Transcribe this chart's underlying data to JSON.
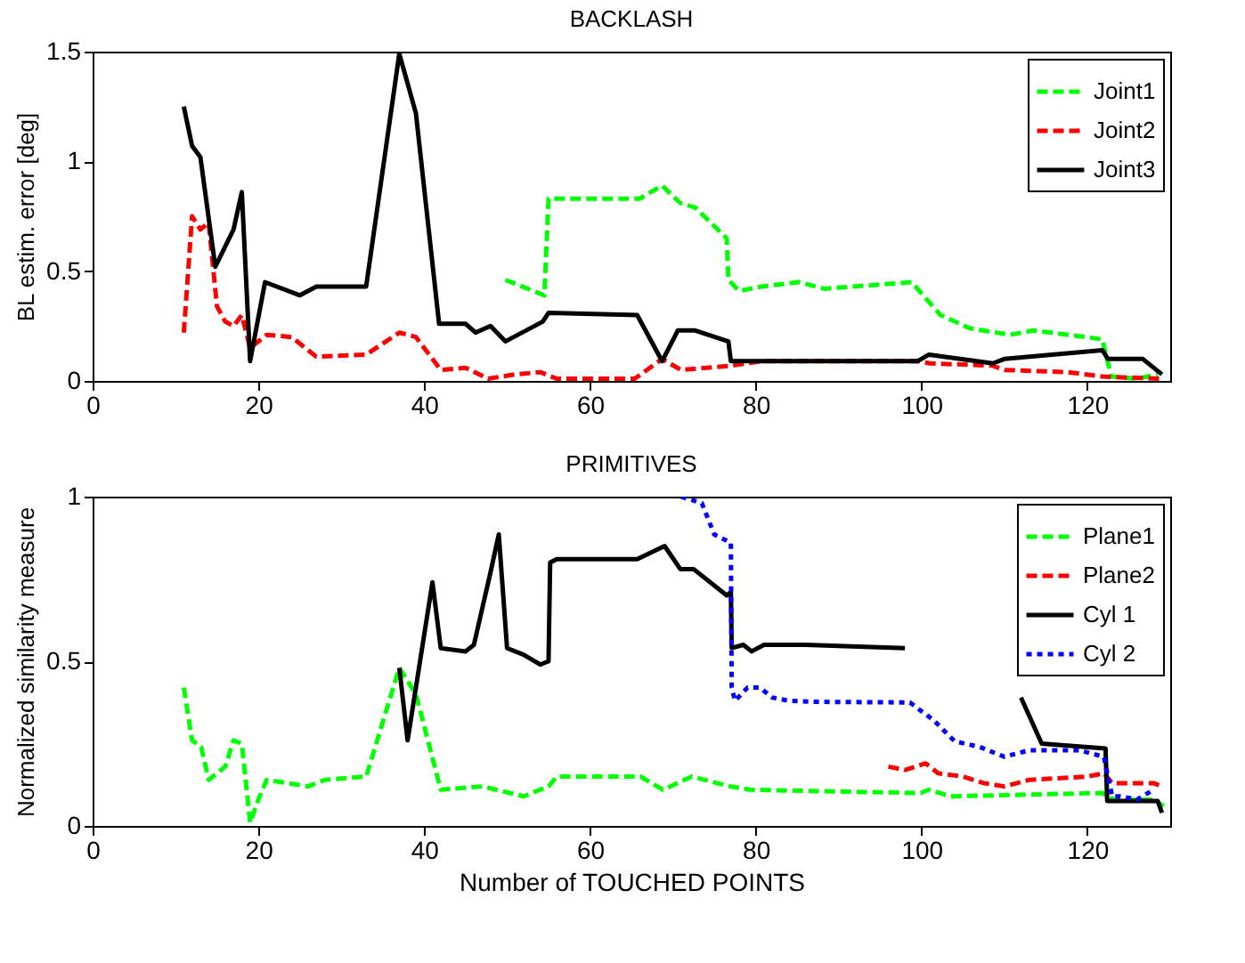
{
  "chart_data": [
    {
      "type": "line",
      "title": "BACKLASH",
      "ylabel": "BL estim. error [deg]",
      "xlim": [
        0,
        130
      ],
      "xticks": [
        0,
        20,
        40,
        60,
        80,
        100,
        120
      ],
      "ylim": [
        0,
        1.5
      ],
      "yticks": [
        0,
        0.5,
        1,
        1.5
      ],
      "grid": false,
      "legend": "top right",
      "series": [
        {
          "name": "Joint1",
          "color": "#00ff00",
          "line_style": "dashed",
          "x": [
            49.8,
            54.5,
            55,
            66,
            68.7,
            70.9,
            72.7,
            76.5,
            76.7,
            78,
            80.7,
            85.2,
            88.3,
            98.8,
            102.3,
            105.8,
            110.7,
            113.5,
            121.8,
            122.9,
            126,
            128.5
          ],
          "values": [
            0.46,
            0.39,
            0.83,
            0.83,
            0.89,
            0.81,
            0.79,
            0.65,
            0.46,
            0.41,
            0.43,
            0.45,
            0.42,
            0.45,
            0.3,
            0.24,
            0.21,
            0.23,
            0.19,
            0.02,
            0.01,
            0.03
          ]
        },
        {
          "name": "Joint2",
          "color": "#ff0000",
          "line_style": "dashed",
          "x": [
            11,
            12,
            13,
            14,
            15,
            16,
            17,
            18,
            19,
            21,
            24,
            27,
            33,
            37,
            39,
            42,
            45,
            47.7,
            51,
            54,
            56,
            65.4,
            68.7,
            71,
            77.2,
            80.7,
            99.5,
            101,
            108.5,
            110,
            117.6,
            121.8,
            128.7
          ],
          "values": [
            0.22,
            0.75,
            0.69,
            0.72,
            0.34,
            0.27,
            0.25,
            0.3,
            0.15,
            0.21,
            0.2,
            0.11,
            0.12,
            0.22,
            0.2,
            0.05,
            0.06,
            0.01,
            0.03,
            0.04,
            0.01,
            0.01,
            0.1,
            0.05,
            0.07,
            0.09,
            0.09,
            0.08,
            0.07,
            0.05,
            0.04,
            0.02,
            0.01
          ]
        },
        {
          "name": "Joint3",
          "color": "#000000",
          "line_style": "solid",
          "x": [
            11,
            12,
            13,
            14.8,
            17,
            18,
            19,
            20.8,
            25,
            27,
            33,
            37,
            39,
            41.8,
            45,
            46.2,
            48,
            49.8,
            54.3,
            55,
            65.7,
            68.7,
            70.6,
            72.7,
            76.7,
            77,
            99.5,
            100.9,
            108.6,
            110,
            121.8,
            122.5,
            126.7,
            129
          ],
          "values": [
            1.25,
            1.07,
            1.02,
            0.52,
            0.69,
            0.86,
            0.09,
            0.45,
            0.39,
            0.43,
            0.43,
            1.49,
            1.22,
            0.26,
            0.26,
            0.22,
            0.25,
            0.18,
            0.27,
            0.31,
            0.3,
            0.09,
            0.23,
            0.23,
            0.18,
            0.09,
            0.09,
            0.12,
            0.08,
            0.1,
            0.14,
            0.1,
            0.1,
            0.03
          ]
        }
      ]
    },
    {
      "type": "line",
      "title": "PRIMITIVES",
      "xlabel": "Number of TOUCHED POINTS",
      "ylabel": "Normalized similarity measure",
      "xlim": [
        0,
        130
      ],
      "xticks": [
        0,
        20,
        40,
        60,
        80,
        100,
        120
      ],
      "ylim": [
        0,
        1
      ],
      "yticks": [
        0,
        0.5,
        1
      ],
      "grid": false,
      "legend": "top right",
      "series": [
        {
          "name": "Plane1",
          "color": "#00ff00",
          "line_style": "dashed",
          "x": [
            11,
            12,
            13.1,
            14,
            16,
            17,
            18,
            19,
            20,
            21,
            26,
            28,
            33,
            37,
            39,
            42,
            47,
            52,
            55,
            56,
            66.1,
            68.8,
            72.3,
            76.9,
            79.3,
            87,
            99.9,
            100.9,
            103.5,
            121.8,
            123.2,
            128,
            129.2
          ],
          "values": [
            0.42,
            0.26,
            0.24,
            0.14,
            0.18,
            0.26,
            0.25,
            0.01,
            0.08,
            0.14,
            0.12,
            0.14,
            0.15,
            0.48,
            0.4,
            0.11,
            0.12,
            0.09,
            0.12,
            0.15,
            0.15,
            0.11,
            0.15,
            0.12,
            0.11,
            0.106,
            0.1,
            0.11,
            0.09,
            0.1,
            0.08,
            0.08,
            0.06
          ]
        },
        {
          "name": "Plane2",
          "color": "#ff0000",
          "line_style": "dashed",
          "x": [
            96,
            98,
            100.5,
            102,
            105,
            107.5,
            110,
            113,
            120,
            122,
            123,
            128,
            129
          ],
          "values": [
            0.18,
            0.17,
            0.19,
            0.16,
            0.15,
            0.13,
            0.12,
            0.14,
            0.15,
            0.16,
            0.13,
            0.13,
            0.12
          ]
        },
        {
          "name": "Cyl 1",
          "color": "#000000",
          "line_style": "solid",
          "x": [
            37,
            38,
            41,
            42,
            45,
            46,
            48,
            49,
            50,
            52,
            54,
            55,
            55.2,
            56,
            65.7,
            69,
            70.9,
            72.5,
            76.5,
            77,
            77.1,
            78.5,
            79.5,
            81,
            86,
            98,
            105,
            112,
            114.5,
            122.2,
            122.4,
            128.5,
            129
          ],
          "values": [
            0.48,
            0.26,
            0.74,
            0.54,
            0.53,
            0.55,
            0.77,
            0.885,
            0.54,
            0.52,
            0.49,
            0.5,
            0.8,
            0.81,
            0.81,
            0.85,
            0.78,
            0.78,
            0.7,
            0.71,
            0.54,
            0.55,
            0.53,
            0.55,
            0.55,
            0.54,
            null,
            0.39,
            0.25,
            0.235,
            0.076,
            0.076,
            0.04
          ]
        },
        {
          "name": "Cyl 2",
          "color": "#0000ff",
          "line_style": "dotted",
          "x": [
            71,
            73.5,
            75,
            77,
            77.1,
            77.5,
            79,
            80.5,
            82,
            84,
            87,
            98.6,
            101.5,
            104,
            107,
            110,
            113,
            119,
            122,
            123,
            124,
            126,
            128
          ],
          "values": [
            1.0,
            0.98,
            0.885,
            0.86,
            0.42,
            0.38,
            0.42,
            0.42,
            0.39,
            0.38,
            0.377,
            0.375,
            0.32,
            0.257,
            0.24,
            0.21,
            0.23,
            0.23,
            0.21,
            0.09,
            0.09,
            0.08,
            0.11
          ]
        }
      ]
    }
  ]
}
